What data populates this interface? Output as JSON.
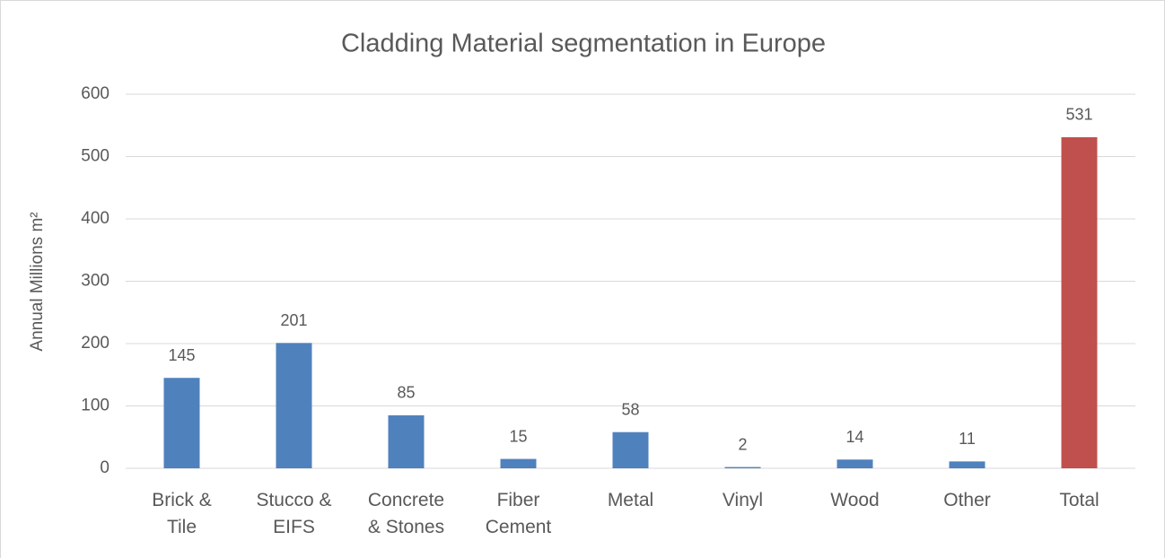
{
  "chart_data": {
    "type": "bar",
    "title": "Cladding Material segmentation in Europe",
    "y_label": "Annual Millions m²",
    "categories": [
      "Brick & Tile",
      "Stucco & EIFS",
      "Concrete & Stones",
      "Fiber Cement",
      "Metal",
      "Vinyl",
      "Wood",
      "Other",
      "Total"
    ],
    "values": [
      145,
      201,
      85,
      15,
      58,
      2,
      14,
      11,
      531
    ],
    "colors": [
      "#4f81bd",
      "#4f81bd",
      "#4f81bd",
      "#4f81bd",
      "#4f81bd",
      "#4f81bd",
      "#4f81bd",
      "#4f81bd",
      "#c0504d"
    ],
    "ylim": [
      0,
      600
    ],
    "yticks": [
      0,
      100,
      200,
      300,
      400,
      500,
      600
    ],
    "grid": true
  }
}
